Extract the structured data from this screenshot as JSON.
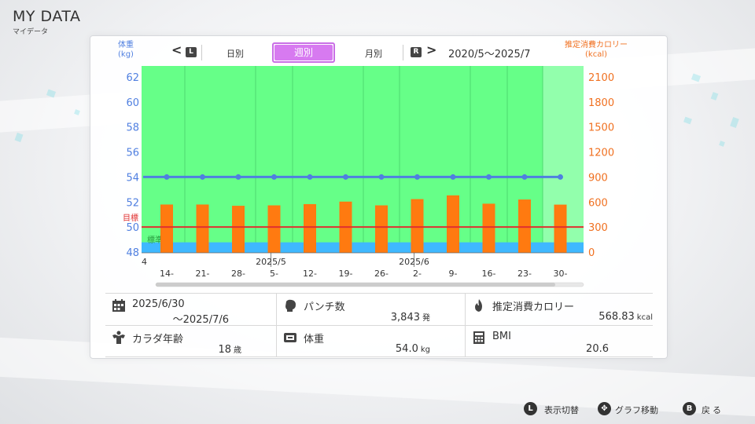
{
  "header": {
    "title": "MY DATA",
    "subtitle": "マイデータ"
  },
  "axis_units": {
    "left": "体重\n(kg)",
    "right": "推定消費カロリー\n(kcal)"
  },
  "nav": {
    "prev_key": "L",
    "next_key": "R",
    "tabs": [
      {
        "label": "日別"
      },
      {
        "label": "週別"
      },
      {
        "label": "月別"
      }
    ],
    "selected_tab": "週別",
    "range": "2020/5〜2025/7"
  },
  "chart_data": {
    "type": "bar",
    "left_axis": {
      "ticks": [
        "62",
        "60",
        "58",
        "56",
        "54",
        "52",
        "50",
        "48"
      ],
      "range": [
        48,
        62
      ],
      "unit": "kg"
    },
    "right_axis": {
      "ticks": [
        "2100",
        "1800",
        "1500",
        "1200",
        "900",
        "600",
        "300",
        "0"
      ],
      "range": [
        0,
        2100
      ],
      "unit": "kcal"
    },
    "x_ticks": [
      "14-",
      "21-",
      "28-",
      "5-",
      "12-",
      "19-",
      "26-",
      "2-",
      "9-",
      "16-",
      "23-",
      "30-"
    ],
    "month_labels": [
      {
        "label": "2025/5",
        "index": 3
      },
      {
        "label": "2025/6",
        "index": 7
      }
    ],
    "left_edge_label": "4",
    "series": [
      {
        "name": "体重",
        "axis": "left",
        "type": "line",
        "color": "#4f7fe0",
        "values": [
          54.0,
          54.0,
          54.0,
          54.0,
          54.0,
          54.0,
          54.0,
          54.0,
          54.0,
          54.0,
          54.0,
          54.0
        ]
      },
      {
        "name": "推定消費カロリー",
        "axis": "right",
        "type": "bar",
        "color": "#ff7a10",
        "values": [
          570,
          570,
          555,
          560,
          575,
          605,
          560,
          635,
          680,
          580,
          630,
          568.83
        ]
      }
    ],
    "target": {
      "label": "目標",
      "value": 50,
      "color": "#e03030"
    },
    "standard": {
      "label": "標準",
      "band": [
        48,
        48.4
      ]
    },
    "background_color": "#66ff88"
  },
  "stats": {
    "period": {
      "line1": "2025/6/30",
      "line2": "〜2025/7/6"
    },
    "punch": {
      "label": "パンチ数",
      "value": "3,843",
      "unit": "発"
    },
    "calorie": {
      "label": "推定消費カロリー",
      "value": "568.83",
      "unit": "kcal"
    },
    "body_age": {
      "label": "カラダ年齢",
      "value": "18",
      "unit": "歳"
    },
    "weight": {
      "label": "体重",
      "value": "54.0",
      "unit": "kg"
    },
    "bmi": {
      "label": "BMI",
      "value": "20.6"
    }
  },
  "footer": {
    "toggle": {
      "key": "L",
      "label": "表示切替"
    },
    "move": {
      "key": "✥",
      "label": "グラフ移動"
    },
    "back": {
      "key": "B",
      "label": "戻る"
    }
  }
}
